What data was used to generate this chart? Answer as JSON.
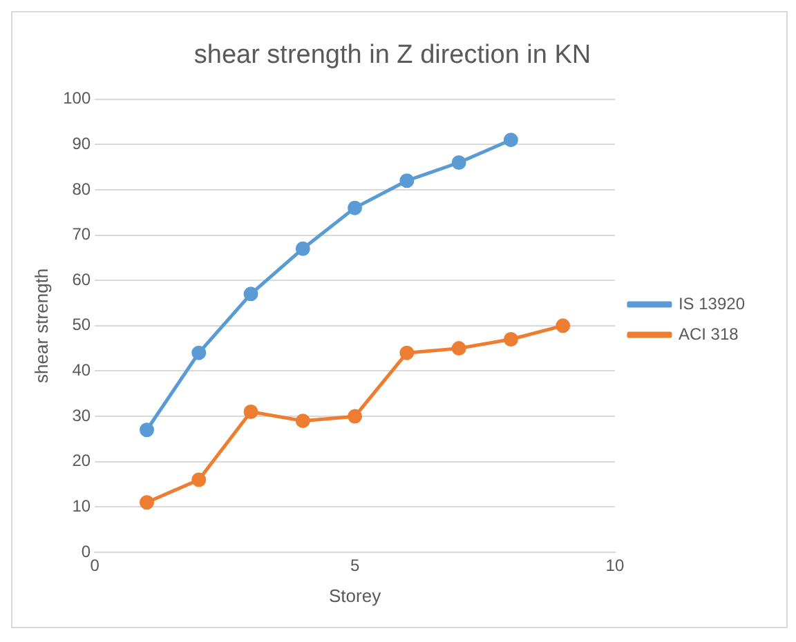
{
  "chart_data": {
    "type": "line",
    "title": "shear strength in Z direction in KN",
    "xlabel": "Storey",
    "ylabel": "shear strength",
    "xlim": [
      0,
      10
    ],
    "xticks": [
      0,
      5,
      10
    ],
    "ylim": [
      0,
      100
    ],
    "yticks": [
      0,
      10,
      20,
      30,
      40,
      50,
      60,
      70,
      80,
      90,
      100
    ],
    "grid": "y",
    "legend": "right",
    "marker": "circle",
    "line_style": "solid",
    "series": [
      {
        "name": "IS 13920",
        "color": "#5b9bd5",
        "x": [
          1,
          2,
          3,
          4,
          5,
          6,
          7,
          8
        ],
        "values": [
          27,
          44,
          57,
          67,
          76,
          82,
          86,
          91
        ]
      },
      {
        "name": "ACI 318",
        "color": "#ed7d31",
        "x": [
          1,
          2,
          3,
          4,
          5,
          6,
          7,
          8,
          9
        ],
        "values": [
          11,
          16,
          31,
          29,
          30,
          44,
          45,
          47,
          50
        ]
      }
    ]
  }
}
